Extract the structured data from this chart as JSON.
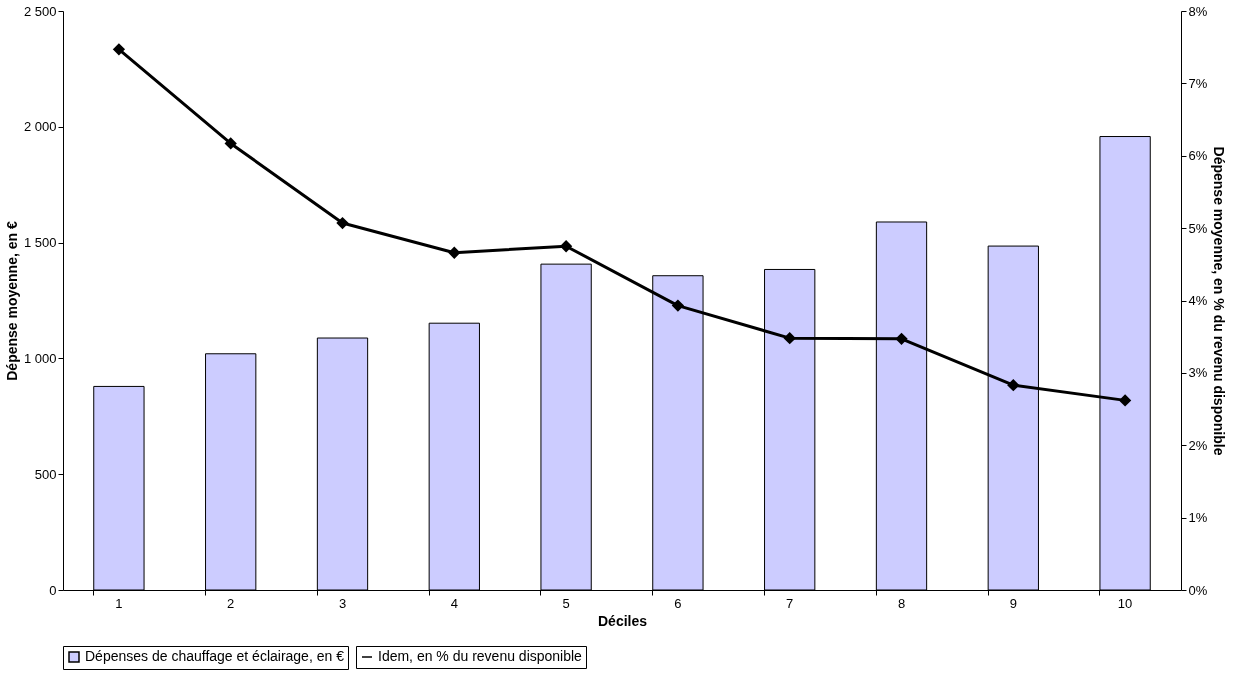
{
  "chart_data": {
    "type": "bar",
    "xlabel": "Déciles",
    "ylabel": "Dépense moyenne, en €",
    "y2label": "Dépense moyenne, en % du revenu disponible",
    "categories": [
      "1",
      "2",
      "3",
      "4",
      "5",
      "6",
      "7",
      "8",
      "9",
      "10"
    ],
    "series": [
      {
        "name": "Dépenses de chauffage et éclairage, en €",
        "color": "#ccccff",
        "values": [
          879,
          1020,
          1088,
          1152,
          1407,
          1357,
          1384,
          1589,
          1485,
          1958
        ]
      },
      {
        "name": "Idem, en % du revenu disponible",
        "type": "line",
        "axis": "y2",
        "color": "#000000",
        "marker": "diamond",
        "values": [
          7.47,
          6.17,
          5.07,
          4.66,
          4.75,
          3.93,
          3.48,
          3.47,
          2.83,
          2.62
        ]
      }
    ],
    "ylim": [
      0,
      2500
    ],
    "yticks": [
      0,
      500,
      {
        "value": 1000,
        "label": "1 000"
      },
      {
        "value": 1500,
        "label": "1 500"
      },
      {
        "value": 2000,
        "label": "2 000"
      },
      {
        "value": 2500,
        "label": "2 500"
      }
    ],
    "y2lim": [
      0,
      8
    ],
    "y2ticks": [
      {
        "value": 0,
        "label": "0%"
      },
      {
        "value": 1,
        "label": "1%"
      },
      {
        "value": 2,
        "label": "2%"
      },
      {
        "value": 3,
        "label": "3%"
      },
      {
        "value": 4,
        "label": "4%"
      },
      {
        "value": 5,
        "label": "5%"
      },
      {
        "value": 6,
        "label": "6%"
      },
      {
        "value": 7,
        "label": "7%"
      },
      {
        "value": 8,
        "label": "8%"
      }
    ],
    "grid": false,
    "legend": "bottom"
  }
}
